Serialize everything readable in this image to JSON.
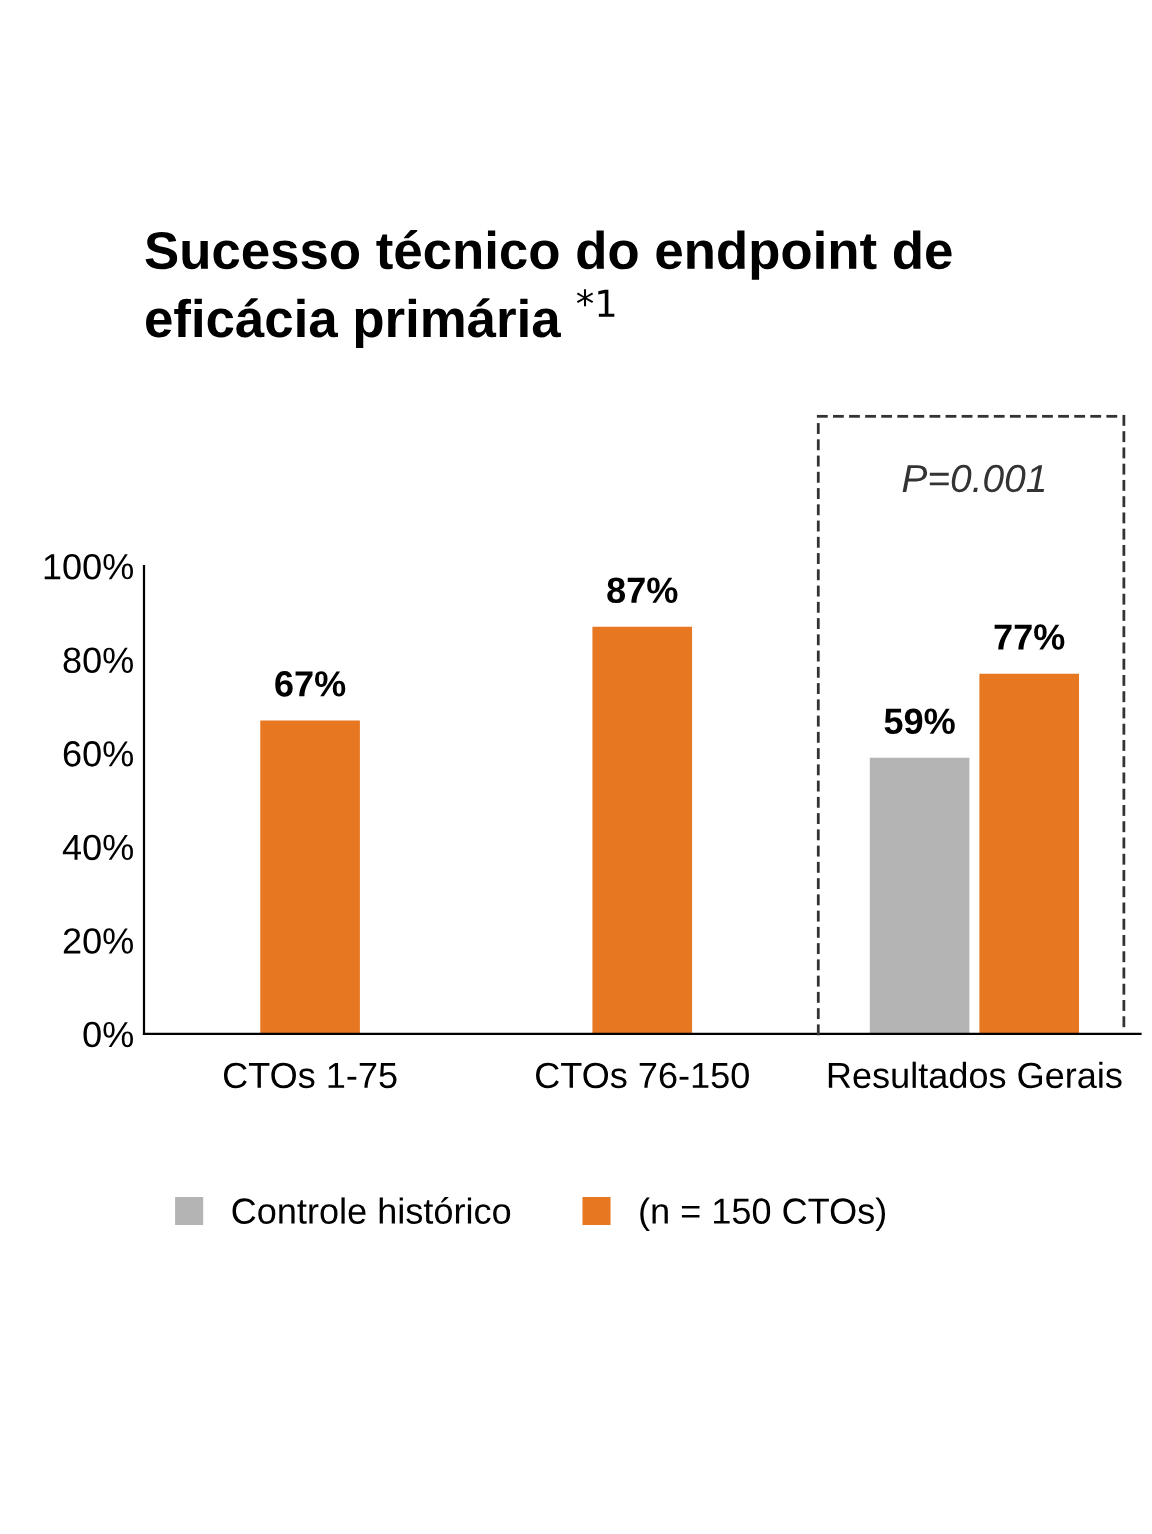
{
  "chart_data": {
    "type": "bar",
    "title": "Sucesso técnico do endpoint de eficácia primária $^{*1}$",
    "categories": [
      "CTOs 1-75",
      "CTOs 76-150",
      "Resultados Gerais"
    ],
    "series": [
      {
        "name": "Controle histórico",
        "color": "#b4b4b4",
        "values": [
          null,
          null,
          59
        ],
        "value_labels": [
          null,
          null,
          "59%"
        ]
      },
      {
        "name": "(n = 150 CTOs)",
        "color": "#e87722",
        "values": [
          67,
          87,
          77
        ],
        "value_labels": [
          "67%",
          "87%",
          "77%"
        ]
      }
    ],
    "ylim": [
      0,
      100
    ],
    "yticks": [
      {
        "value": 0,
        "label": "0%"
      },
      {
        "value": 20,
        "label": "20%"
      },
      {
        "value": 40,
        "label": "40%"
      },
      {
        "value": 60,
        "label": "60%"
      },
      {
        "value": 80,
        "label": "80%"
      },
      {
        "value": 100,
        "label": "100%"
      }
    ],
    "annotations": [
      "P=0.001"
    ],
    "legend": "bottom",
    "grid": false
  }
}
